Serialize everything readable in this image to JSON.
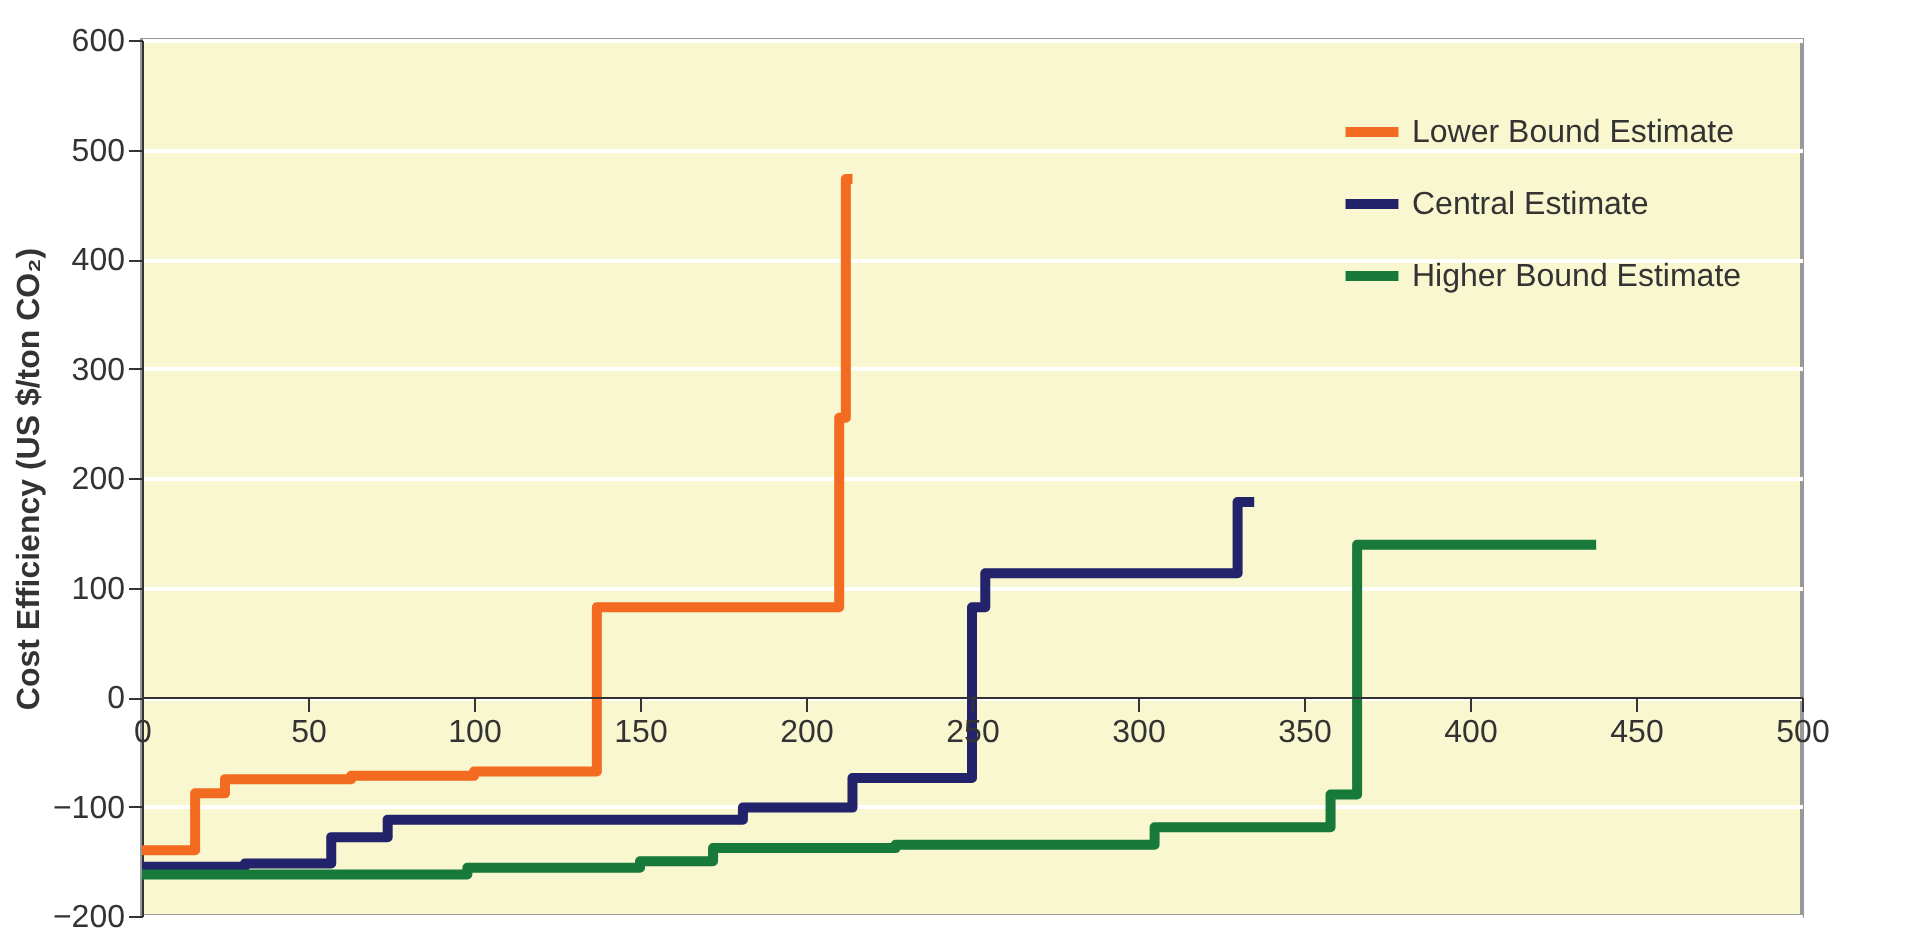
{
  "chart_data": {
    "type": "step",
    "ylabel": "Cost Efficiency (US $/ton CO₂)",
    "xlim": [
      0,
      500
    ],
    "xticks": [
      0,
      50,
      100,
      150,
      200,
      250,
      300,
      350,
      400,
      450,
      500
    ],
    "ylim": [
      -200,
      600
    ],
    "yticks": [
      -200,
      -100,
      0,
      100,
      200,
      300,
      400,
      500,
      600
    ],
    "grid": "y",
    "legend": "top right",
    "line_style": "solid",
    "marker": "none",
    "series": [
      {
        "name": "Lower Bound Estimate",
        "color": "#f26b21",
        "x": [
          0,
          16,
          25,
          63,
          100,
          137,
          210,
          212,
          214
        ],
        "values": [
          -140,
          -88,
          -75,
          -72,
          -68,
          82,
          255,
          473,
          473
        ]
      },
      {
        "name": "Central Estimate",
        "color": "#23236b",
        "x": [
          0,
          31,
          57,
          74,
          181,
          214,
          250,
          254,
          330,
          335
        ],
        "values": [
          -155,
          -152,
          -128,
          -112,
          -101,
          -74,
          82,
          113,
          178,
          178
        ]
      },
      {
        "name": "Higher Bound Estimate",
        "color": "#17793a",
        "x": [
          0,
          98,
          150,
          172,
          227,
          305,
          358,
          366,
          438
        ],
        "values": [
          -162,
          -156,
          -150,
          -138,
          -135,
          -119,
          -89,
          139,
          139
        ]
      }
    ]
  }
}
